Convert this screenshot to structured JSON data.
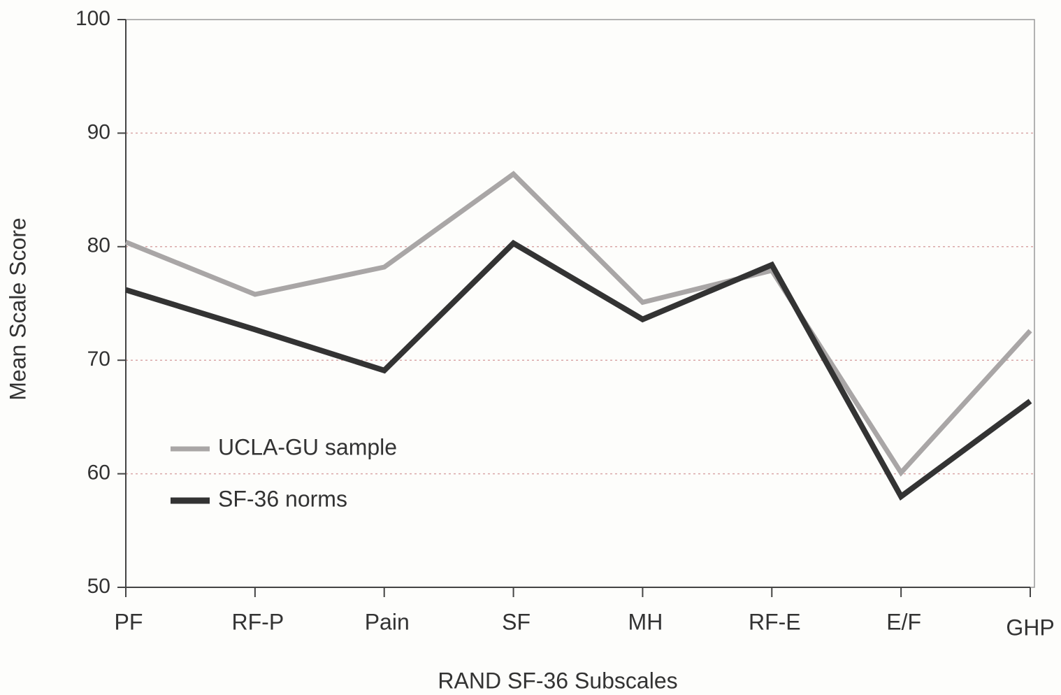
{
  "chart_data": {
    "type": "line",
    "x_label": "RAND SF-36 Subscales",
    "y_label": "Mean Scale Score",
    "categories": [
      "PF",
      "RF-P",
      "Pain",
      "SF",
      "MH",
      "RF-E",
      "E/F",
      "GHP"
    ],
    "series": [
      {
        "name": "UCLA-GU sample",
        "color": "#a9a6a6",
        "values": [
          80.4,
          75.8,
          78.2,
          86.4,
          75.1,
          77.9,
          60.1,
          72.6
        ]
      },
      {
        "name": "SF-36 norms",
        "color": "#333333",
        "values": [
          76.2,
          72.7,
          69.1,
          80.3,
          73.6,
          78.4,
          58.0,
          66.4
        ]
      }
    ],
    "ylim": [
      50,
      100
    ],
    "yticks": [
      50,
      60,
      70,
      80,
      90,
      100
    ],
    "grid": true,
    "legend": "lower left"
  }
}
